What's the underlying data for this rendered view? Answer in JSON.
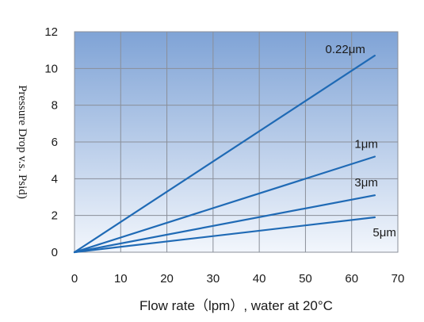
{
  "chart_data": {
    "type": "line",
    "title": "",
    "xlabel": "Flow rate（lpm）, water at 20°C",
    "ylabel": "Pressure Drop v.s. Psid)",
    "xlim": [
      0,
      70
    ],
    "ylim": [
      0,
      12
    ],
    "x_ticks": [
      "0",
      "10",
      "20",
      "30",
      "40",
      "50",
      "60",
      "70"
    ],
    "y_ticks": [
      "0",
      "2",
      "4",
      "6",
      "8",
      "10",
      "12"
    ],
    "grid": true,
    "legend": "none",
    "series": [
      {
        "name": "0.22μm",
        "x": [
          0,
          65
        ],
        "y": [
          0,
          10.7
        ]
      },
      {
        "name": "1μm",
        "x": [
          0,
          65
        ],
        "y": [
          0,
          5.2
        ]
      },
      {
        "name": "3μm",
        "x": [
          0,
          65
        ],
        "y": [
          0,
          3.1
        ]
      },
      {
        "name": "5μm",
        "x": [
          0,
          65
        ],
        "y": [
          0,
          1.9
        ]
      }
    ],
    "colors": {
      "line": "#1f6ab5",
      "background_top": "#7fa3d6",
      "background_bottom": "#f2f6fc"
    }
  }
}
